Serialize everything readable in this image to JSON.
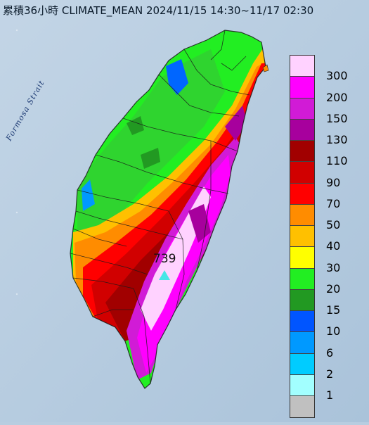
{
  "title": "累積36小時 CLIMATE_MEAN 2024/11/15 14:30~11/17 02:30",
  "strait_label": "Formosa Strait",
  "max_station": {
    "value": "739",
    "marker": "triangle-marker"
  },
  "legend": {
    "colors": [
      "#ffd2ff",
      "#ff00ff",
      "#d11bd6",
      "#a7009d",
      "#a10000",
      "#d10000",
      "#ff0000",
      "#ff8c00",
      "#ffc000",
      "#ffff00",
      "#22ee22",
      "#229922",
      "#0055ff",
      "#0099ff",
      "#00ccff",
      "#a2ffff",
      "#c0c0c0"
    ],
    "labels": [
      "300",
      "200",
      "150",
      "130",
      "110",
      "90",
      "70",
      "50",
      "40",
      "30",
      "20",
      "15",
      "10",
      "6",
      "2",
      "1"
    ]
  }
}
